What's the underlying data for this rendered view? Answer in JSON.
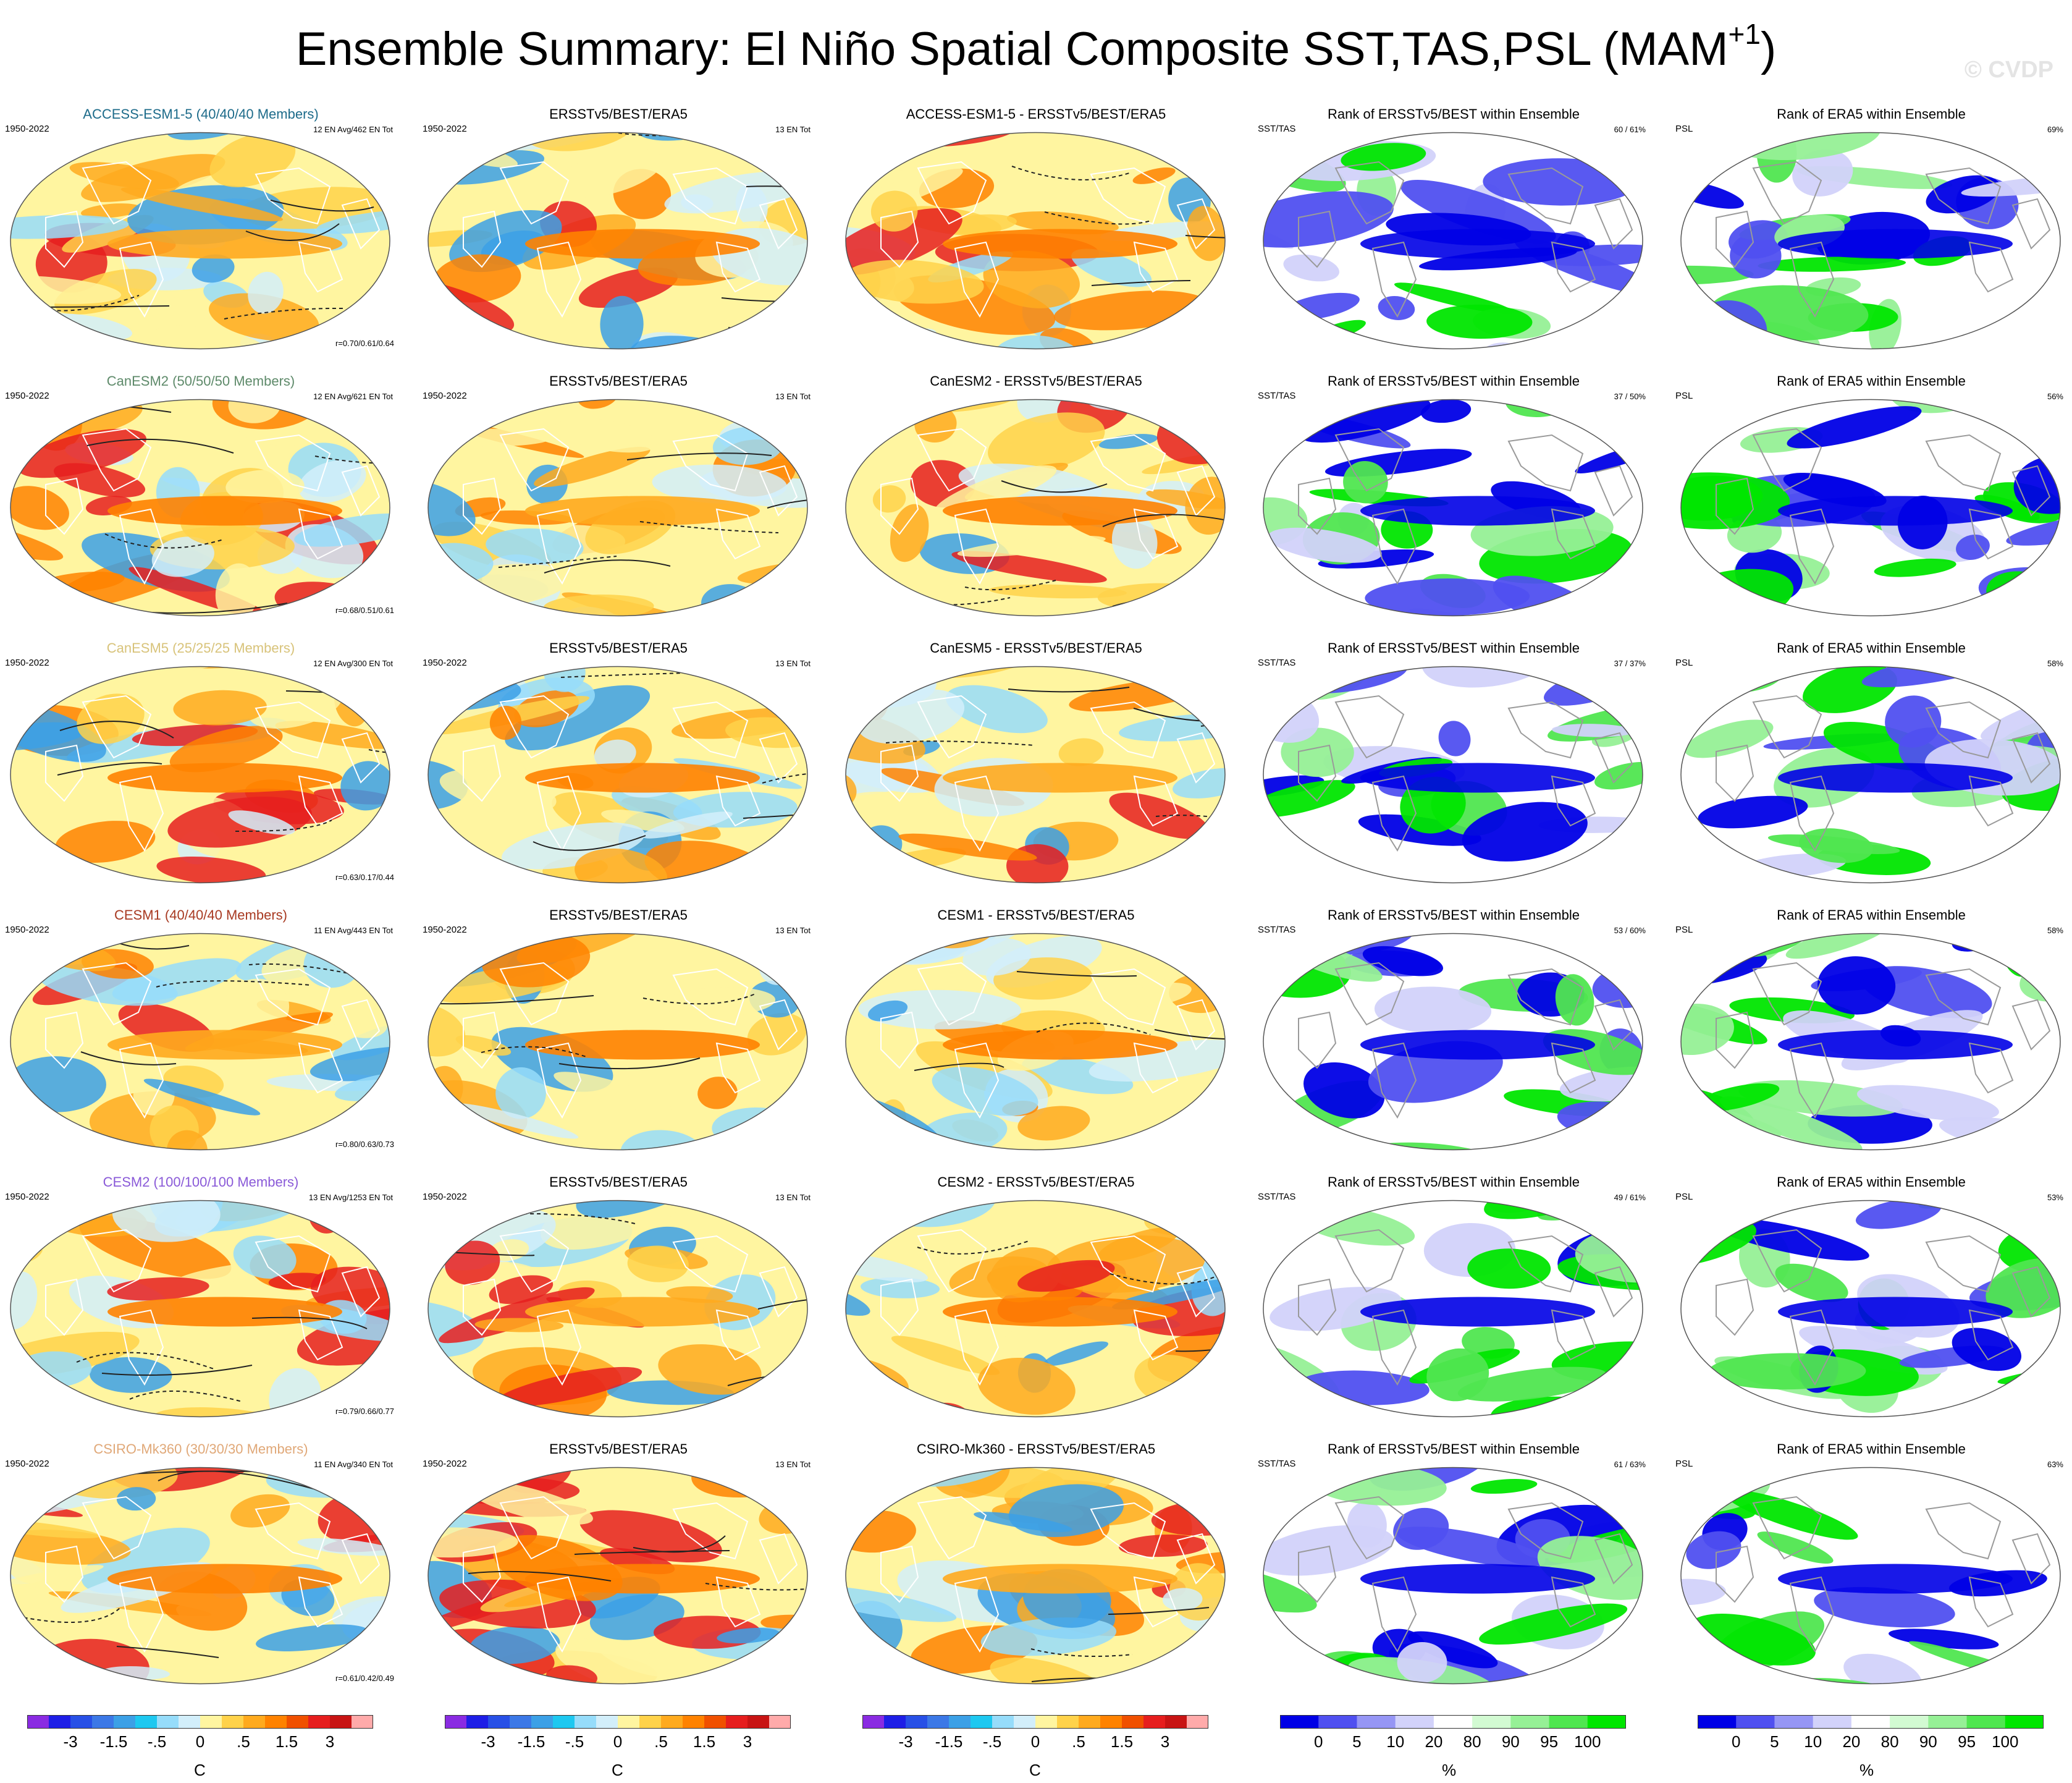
{
  "title": {
    "main": "Ensemble Summary: El Niño Spatial Composite SST,TAS,PSL (MAM",
    "sup": "+1",
    "close": ")"
  },
  "watermark": "© CVDP",
  "observed_label": "ERSSTv5/BEST/ERA5",
  "period_label": "1950-2022",
  "obs_events": "13 EN Tot",
  "rank_titles": {
    "sst_tas": "Rank of ERSSTv5/BEST within Ensemble",
    "psl": "Rank of ERA5 within Ensemble"
  },
  "rank_labels": {
    "sst_tas": "SST/TAS",
    "psl": "PSL"
  },
  "rows": [
    {
      "model": "ACCESS-ESM1-5",
      "members": "ACCESS-ESM1-5 (40/40/40 Members)",
      "title_color": "#1d6b8a",
      "events": "12 EN Avg/462 EN Tot",
      "r": "r=0.70/0.61/0.64",
      "diff_title": "ACCESS-ESM1-5 - ERSSTv5/BEST/ERA5",
      "rank_sst": "60 /  61%",
      "rank_psl": "69%"
    },
    {
      "model": "CanESM2",
      "members": "CanESM2 (50/50/50 Members)",
      "title_color": "#5e8a6a",
      "events": "12 EN Avg/621 EN Tot",
      "r": "r=0.68/0.51/0.61",
      "diff_title": "CanESM2 - ERSSTv5/BEST/ERA5",
      "rank_sst": "37 /  50%",
      "rank_psl": "56%"
    },
    {
      "model": "CanESM5",
      "members": "CanESM5 (25/25/25 Members)",
      "title_color": "#d8c37a",
      "events": "12 EN Avg/300 EN Tot",
      "r": "r=0.63/0.17/0.44",
      "diff_title": "CanESM5 - ERSSTv5/BEST/ERA5",
      "rank_sst": "37 /  37%",
      "rank_psl": "58%"
    },
    {
      "model": "CESM1",
      "members": "CESM1 (40/40/40 Members)",
      "title_color": "#a83a22",
      "events": "11 EN Avg/443 EN Tot",
      "r": "r=0.80/0.63/0.73",
      "diff_title": "CESM1 - ERSSTv5/BEST/ERA5",
      "rank_sst": "53 /  60%",
      "rank_psl": "58%"
    },
    {
      "model": "CESM2",
      "members": "CESM2 (100/100/100 Members)",
      "title_color": "#8a5ad8",
      "events": "13 EN Avg/1253 EN Tot",
      "r": "r=0.79/0.66/0.77",
      "diff_title": "CESM2 - ERSSTv5/BEST/ERA5",
      "rank_sst": "49 /  61%",
      "rank_psl": "53%"
    },
    {
      "model": "CSIRO-Mk360",
      "members": "CSIRO-Mk360 (30/30/30 Members)",
      "title_color": "#e0a878",
      "events": "11 EN Avg/340 EN Tot",
      "r": "r=0.61/0.42/0.49",
      "diff_title": "CSIRO-Mk360 - ERSSTv5/BEST/ERA5",
      "rank_sst": "61 /  63%",
      "rank_psl": "63%"
    }
  ],
  "colorbars": {
    "temperature": {
      "unit": "C",
      "ticks": [
        "-3",
        "-1.5",
        "-.5",
        "0",
        ".5",
        "1.5",
        "3"
      ],
      "colors": [
        "#8a2be2",
        "#1e1ee6",
        "#2850e6",
        "#3c78e6",
        "#3ca0e6",
        "#1ec8f0",
        "#96dcfa",
        "#d2eefa",
        "#fff5a0",
        "#ffd24a",
        "#ffaa1e",
        "#ff8200",
        "#f05000",
        "#e61e1e",
        "#c81414",
        "#ffaaaa"
      ]
    },
    "rank": {
      "unit": "%",
      "ticks": [
        "0",
        "5",
        "10",
        "20",
        "80",
        "90",
        "95",
        "100"
      ],
      "colors": [
        "#0000e6",
        "#5050f0",
        "#9696f5",
        "#d2d2fa",
        "#ffffff",
        "#d2fad2",
        "#96f096",
        "#50e650",
        "#00e600"
      ]
    }
  }
}
